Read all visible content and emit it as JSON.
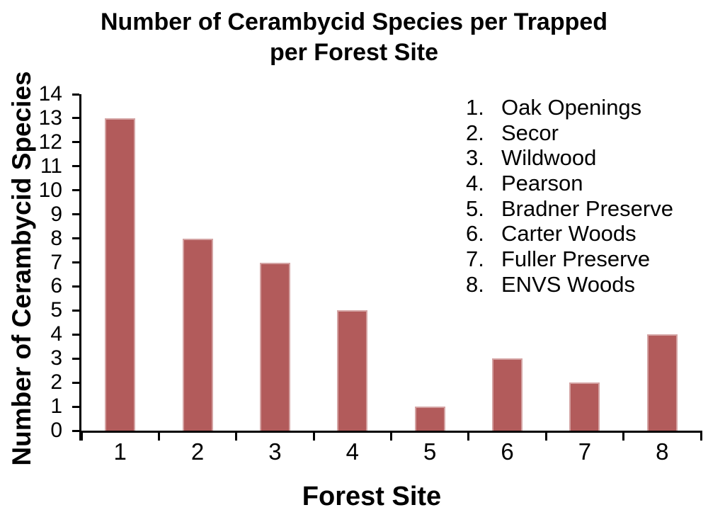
{
  "title": {
    "line1": "Number of Cerambycid Species per Trapped",
    "line2": "per Forest Site"
  },
  "axes": {
    "x_label": "Forest Site",
    "y_label": "Number of Cerambycid Species"
  },
  "legend": {
    "entries": [
      {
        "num": "1.",
        "label": "Oak Openings"
      },
      {
        "num": "2.",
        "label": "Secor"
      },
      {
        "num": "3.",
        "label": "Wildwood"
      },
      {
        "num": "4.",
        "label": "Pearson"
      },
      {
        "num": "5.",
        "label": "Bradner Preserve"
      },
      {
        "num": "6.",
        "label": "Carter Woods"
      },
      {
        "num": "7.",
        "label": "Fuller Preserve"
      },
      {
        "num": "8.",
        "label": "ENVS Woods"
      }
    ]
  },
  "chart_data": {
    "type": "bar",
    "title": "Number of Cerambycid Species per Trapped per Forest Site",
    "xlabel": "Forest Site",
    "ylabel": "Number of Cerambycid Species",
    "categories": [
      "1",
      "2",
      "3",
      "4",
      "5",
      "6",
      "7",
      "8"
    ],
    "category_names": [
      "Oak Openings",
      "Secor",
      "Wildwood",
      "Pearson",
      "Bradner Preserve",
      "Carter Woods",
      "Fuller Preserve",
      "ENVS Woods"
    ],
    "values": [
      13,
      8,
      7,
      5,
      1,
      3,
      2,
      4
    ],
    "ylim": [
      0,
      14
    ],
    "ytick_step": 1,
    "grid": false,
    "legend_position": "upper-right",
    "colors": {
      "bar_fill": "#b25b5b",
      "bar_border": "#d4a3a3",
      "axis": "#000000",
      "text": "#000000"
    }
  }
}
